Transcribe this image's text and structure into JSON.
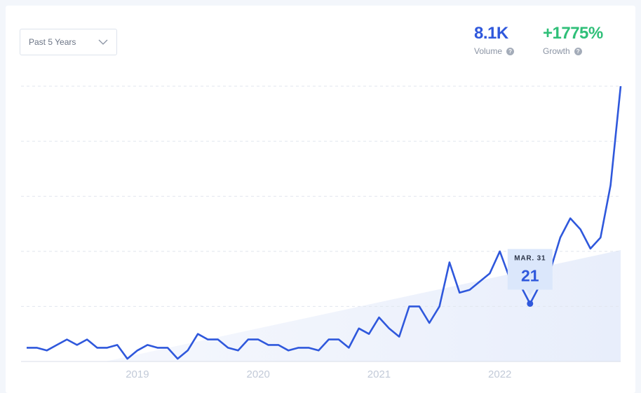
{
  "header": {
    "range_selector": "Past 5 Years",
    "help_icon": "?",
    "stats": [
      {
        "value": "8.1K",
        "label": "Volume"
      },
      {
        "value": "+1775%",
        "label": "Growth"
      }
    ]
  },
  "chart_data": {
    "type": "line",
    "categories": [
      null,
      null,
      null,
      null,
      null,
      null,
      null,
      null,
      null,
      null,
      null,
      "2019",
      null,
      null,
      null,
      null,
      null,
      null,
      null,
      null,
      null,
      null,
      null,
      "2020",
      null,
      null,
      null,
      null,
      null,
      null,
      null,
      null,
      null,
      null,
      null,
      "2021",
      null,
      null,
      null,
      null,
      null,
      null,
      null,
      null,
      null,
      null,
      null,
      "2022",
      null,
      null,
      null,
      null,
      null,
      null,
      null,
      null,
      null,
      null,
      null,
      null
    ],
    "series": [
      {
        "name": "Volume",
        "color": "#2f58dc",
        "values": [
          5,
          5,
          4,
          6,
          8,
          6,
          8,
          5,
          5,
          6,
          1,
          4,
          6,
          5,
          5,
          1,
          4,
          10,
          8,
          8,
          5,
          4,
          8,
          8,
          6,
          6,
          4,
          5,
          5,
          4,
          8,
          8,
          5,
          12,
          10,
          16,
          12,
          9,
          20,
          20,
          14,
          20,
          36,
          25,
          26,
          29,
          32,
          40,
          30,
          28,
          21,
          28,
          33,
          45,
          52,
          48,
          41,
          45,
          64,
          100
        ]
      }
    ],
    "ylim": [
      0,
      100
    ],
    "yticks": [
      0,
      20,
      40,
      60,
      80,
      100
    ],
    "grid": true,
    "tooltip": {
      "index": 50,
      "date": "MAR. 31"
    }
  }
}
